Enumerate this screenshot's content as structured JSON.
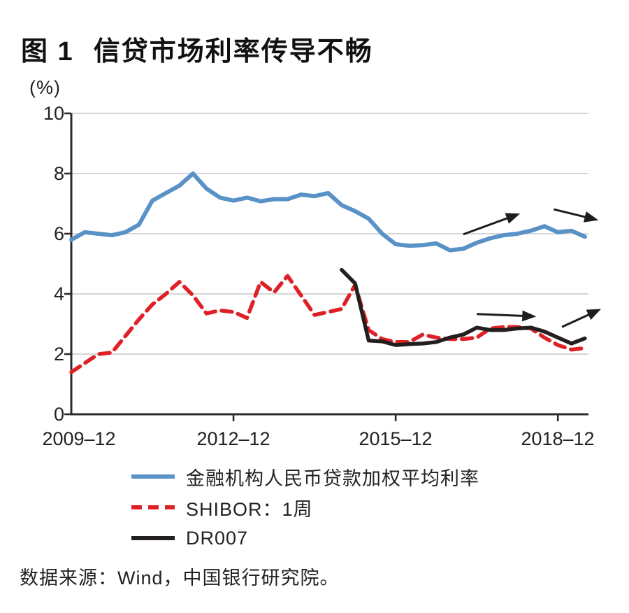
{
  "header": {
    "figure_label": "图 1",
    "title": "信贷市场利率传导不畅"
  },
  "chart_data": {
    "type": "line",
    "title": "信贷市场利率传导不畅",
    "unit_label": "(%)",
    "ylabel": "(%)",
    "ylim": [
      0,
      10
    ],
    "grid": "horizontal",
    "grid_values": [
      2,
      4,
      6,
      8,
      10
    ],
    "y_ticks": [
      "10",
      "8",
      "6",
      "4",
      "2",
      "0"
    ],
    "x_tick_labels": [
      "2009–12",
      "2012–12",
      "2015–12",
      "2018–12"
    ],
    "x_tick_quarters": [
      0,
      12,
      24,
      36
    ],
    "x_unit": "quarter (from 2009-12)",
    "colors": {
      "loan_rate_blue": "#5992c6",
      "shibor_red": "#dd2126",
      "dr007_black": "#231f1f",
      "grid": "#c9c9c9",
      "axis": "#2b2b2b",
      "annotation": "#1d1d1d"
    },
    "series": [
      {
        "name": "金融机构人民币贷款加权平均利率",
        "color": "#5992c6",
        "style": "solid",
        "width": 6,
        "start_q": 0,
        "values": [
          5.8,
          6.05,
          6.0,
          5.95,
          6.05,
          6.3,
          7.1,
          7.35,
          7.6,
          8.0,
          7.5,
          7.2,
          7.1,
          7.2,
          7.08,
          7.15,
          7.15,
          7.3,
          7.25,
          7.35,
          6.95,
          6.75,
          6.5,
          6.0,
          5.65,
          5.6,
          5.62,
          5.68,
          5.45,
          5.5,
          5.7,
          5.85,
          5.95,
          6.0,
          6.1,
          6.25,
          6.05,
          6.1,
          5.9
        ]
      },
      {
        "name": "SHIBOR：1周",
        "color": "#dd2126",
        "style": "dashed",
        "width": 5.5,
        "start_q": 0,
        "values": [
          1.4,
          1.7,
          2.0,
          2.05,
          2.6,
          3.15,
          3.65,
          4.0,
          4.4,
          3.95,
          3.35,
          3.45,
          3.4,
          3.2,
          4.4,
          4.05,
          4.6,
          3.95,
          3.3,
          3.4,
          3.5,
          4.3,
          2.8,
          2.5,
          2.4,
          2.4,
          2.65,
          2.55,
          2.5,
          2.5,
          2.55,
          2.85,
          2.9,
          2.9,
          2.85,
          2.55,
          2.3,
          2.15,
          2.2
        ]
      },
      {
        "name": "DR007",
        "color": "#231f1f",
        "style": "solid",
        "width": 5.5,
        "start_q": 20,
        "values": [
          4.8,
          4.35,
          2.45,
          2.42,
          2.3,
          2.33,
          2.35,
          2.4,
          2.55,
          2.65,
          2.88,
          2.8,
          2.8,
          2.85,
          2.88,
          2.75,
          2.55,
          2.35,
          2.52
        ]
      }
    ],
    "annotations": [
      {
        "desc": "up-arrow over loan-rate line",
        "from": [
          29.0,
          5.98
        ],
        "to": [
          33.2,
          6.67
        ]
      },
      {
        "desc": "flat-arrow top right",
        "from": [
          35.7,
          6.81
        ],
        "to": [
          39.0,
          6.45
        ]
      },
      {
        "desc": "flat-arrow over DR007",
        "from": [
          30.0,
          3.33
        ],
        "to": [
          34.4,
          3.25
        ]
      },
      {
        "desc": "up-arrow bottom right",
        "from": [
          36.3,
          2.9
        ],
        "to": [
          39.2,
          3.5
        ]
      }
    ],
    "legend_position": "bottom",
    "source": "数据来源：Wind，中国银行研究院。"
  }
}
